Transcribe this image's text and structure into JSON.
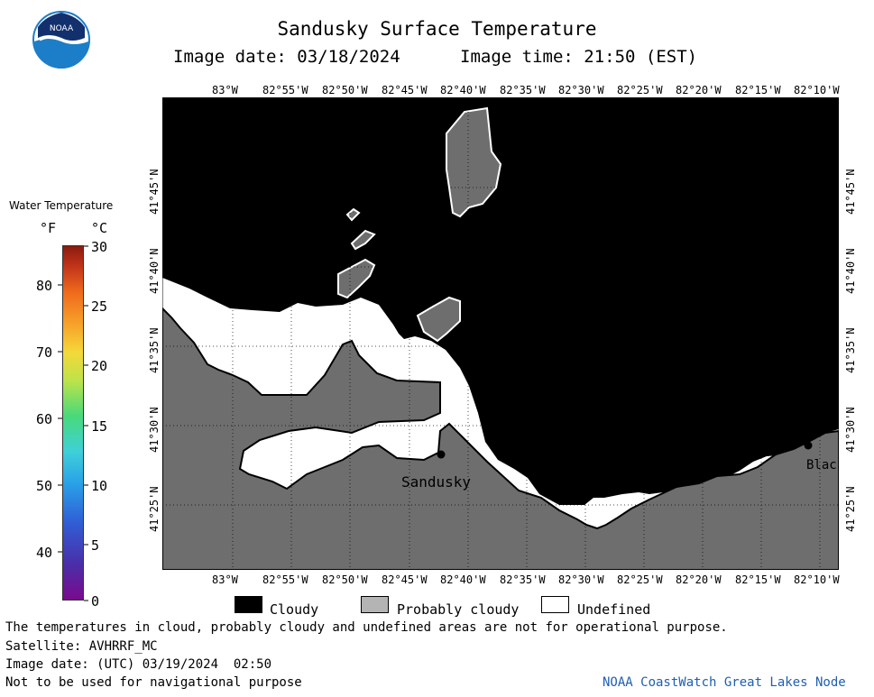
{
  "header": {
    "title": "Sandusky Surface Temperature",
    "image_date_label": "Image date: 03/18/2024",
    "image_time_label": "Image time: 21:50 (EST)"
  },
  "logo": {
    "text": "NOAA",
    "icon": "noaa-logo-icon"
  },
  "colorbar": {
    "title": "Water Temperature",
    "unit_f": "°F",
    "unit_c": "°C",
    "f_ticks": [
      "80",
      "70",
      "60",
      "50",
      "40"
    ],
    "c_ticks": [
      "30",
      "25",
      "20",
      "15",
      "10",
      "5",
      "0"
    ]
  },
  "map": {
    "lon_labels": [
      "83°W",
      "82°55'W",
      "82°50'W",
      "82°45'W",
      "82°40'W",
      "82°35'W",
      "82°30'W",
      "82°25'W",
      "82°20'W",
      "82°15'W",
      "82°10'W"
    ],
    "lat_labels": [
      "41°45'N",
      "41°40'N",
      "41°35'N",
      "41°30'N",
      "41°25'N"
    ],
    "places": [
      "Sandusky",
      "Blac"
    ]
  },
  "legend": [
    {
      "label": "Cloudy",
      "color": "#000000"
    },
    {
      "label": "Probably cloudy",
      "color": "#b4b4b4"
    },
    {
      "label": "Undefined",
      "color": "#ffffff"
    }
  ],
  "footer": {
    "disclaimer": "The temperatures in cloud, probably cloudy and undefined areas are not for operational purpose.",
    "satellite": "Satellite: AVHRRF_MC",
    "utc_date": "Image date: (UTC) 03/19/2024  02:50",
    "nav_warning": "Not to be used for navigational purpose",
    "credit": "NOAA CoastWatch Great Lakes Node"
  },
  "colors": {
    "land": "#6e6e6e",
    "cloud": "#000000",
    "credit": "#1f5fb0"
  }
}
